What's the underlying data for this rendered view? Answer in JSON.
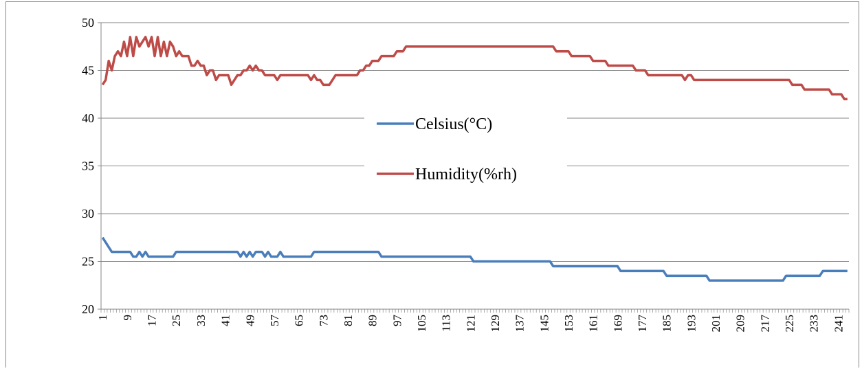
{
  "chart_data": {
    "type": "line",
    "categories": [
      1,
      null,
      null,
      null,
      null,
      null,
      null,
      null,
      9,
      null,
      null,
      null,
      null,
      null,
      null,
      null,
      17,
      null,
      null,
      null,
      null,
      null,
      null,
      null,
      25,
      null,
      null,
      null,
      null,
      null,
      null,
      null,
      33,
      null,
      null,
      null,
      null,
      null,
      null,
      null,
      41,
      null,
      null,
      null,
      null,
      null,
      null,
      null,
      49,
      null,
      null,
      null,
      null,
      null,
      null,
      null,
      57,
      null,
      null,
      null,
      null,
      null,
      null,
      null,
      65,
      null,
      null,
      null,
      null,
      null,
      null,
      null,
      73,
      null,
      null,
      null,
      null,
      null,
      null,
      null,
      81,
      null,
      null,
      null,
      null,
      null,
      null,
      null,
      89,
      null,
      null,
      null,
      null,
      null,
      null,
      null,
      97,
      null,
      null,
      null,
      null,
      null,
      null,
      null,
      105,
      null,
      null,
      null,
      null,
      null,
      null,
      null,
      113,
      null,
      null,
      null,
      null,
      null,
      null,
      null,
      121,
      null,
      null,
      null,
      null,
      null,
      null,
      null,
      129,
      null,
      null,
      null,
      null,
      null,
      null,
      null,
      137,
      null,
      null,
      null,
      null,
      null,
      null,
      null,
      145,
      null,
      null,
      null,
      null,
      null,
      null,
      null,
      153,
      null,
      null,
      null,
      null,
      null,
      null,
      null,
      161,
      null,
      null,
      null,
      null,
      null,
      null,
      null,
      169,
      null,
      null,
      null,
      null,
      null,
      null,
      null,
      177,
      null,
      null,
      null,
      null,
      null,
      null,
      null,
      185,
      null,
      null,
      null,
      null,
      null,
      null,
      null,
      193,
      null,
      null,
      null,
      null,
      null,
      null,
      null,
      201,
      null,
      null,
      null,
      null,
      null,
      null,
      null,
      209,
      null,
      null,
      null,
      null,
      null,
      null,
      null,
      217,
      null,
      null,
      null,
      null,
      null,
      null,
      null,
      225,
      null,
      null,
      null,
      null,
      null,
      null,
      null,
      233,
      null,
      null,
      null,
      null,
      null,
      null,
      null,
      241,
      null,
      null,
      null
    ],
    "series": [
      {
        "name": "Celsius(°C)",
        "color": "#4a7ebb",
        "values": [
          27.5,
          27,
          26.5,
          26,
          26,
          26,
          26,
          26,
          26,
          26,
          25.5,
          25.5,
          26,
          25.5,
          26,
          25.5,
          25.5,
          25.5,
          25.5,
          25.5,
          25.5,
          25.5,
          25.5,
          25.5,
          26,
          26,
          26,
          26,
          26,
          26,
          26,
          26,
          26,
          26,
          26,
          26,
          26,
          26,
          26,
          26,
          26,
          26,
          26,
          26,
          26,
          25.5,
          26,
          25.5,
          26,
          25.5,
          26,
          26,
          26,
          25.5,
          26,
          25.5,
          25.5,
          25.5,
          26,
          25.5,
          25.5,
          25.5,
          25.5,
          25.5,
          25.5,
          25.5,
          25.5,
          25.5,
          25.5,
          26,
          26,
          26,
          26,
          26,
          26,
          26,
          26,
          26,
          26,
          26,
          26,
          26,
          26,
          26,
          26,
          26,
          26,
          26,
          26,
          26,
          26,
          25.5,
          25.5,
          25.5,
          25.5,
          25.5,
          25.5,
          25.5,
          25.5,
          25.5,
          25.5,
          25.5,
          25.5,
          25.5,
          25.5,
          25.5,
          25.5,
          25.5,
          25.5,
          25.5,
          25.5,
          25.5,
          25.5,
          25.5,
          25.5,
          25.5,
          25.5,
          25.5,
          25.5,
          25.5,
          25.5,
          25,
          25,
          25,
          25,
          25,
          25,
          25,
          25,
          25,
          25,
          25,
          25,
          25,
          25,
          25,
          25,
          25,
          25,
          25,
          25,
          25,
          25,
          25,
          25,
          25,
          25,
          24.5,
          24.5,
          24.5,
          24.5,
          24.5,
          24.5,
          24.5,
          24.5,
          24.5,
          24.5,
          24.5,
          24.5,
          24.5,
          24.5,
          24.5,
          24.5,
          24.5,
          24.5,
          24.5,
          24.5,
          24.5,
          24.5,
          24,
          24,
          24,
          24,
          24,
          24,
          24,
          24,
          24,
          24,
          24,
          24,
          24,
          24,
          24,
          23.5,
          23.5,
          23.5,
          23.5,
          23.5,
          23.5,
          23.5,
          23.5,
          23.5,
          23.5,
          23.5,
          23.5,
          23.5,
          23.5,
          23,
          23,
          23,
          23,
          23,
          23,
          23,
          23,
          23,
          23,
          23,
          23,
          23,
          23,
          23,
          23,
          23,
          23,
          23,
          23,
          23,
          23,
          23,
          23,
          23,
          23.5,
          23.5,
          23.5,
          23.5,
          23.5,
          23.5,
          23.5,
          23.5,
          23.5,
          23.5,
          23.5,
          23.5,
          24,
          24,
          24,
          24,
          24,
          24,
          24,
          24,
          24
        ]
      },
      {
        "name": "Humidity(%rh)",
        "color": "#be4b48",
        "values": [
          43.5,
          44,
          46,
          45,
          46.5,
          47,
          46.5,
          48,
          46.5,
          48.5,
          46.5,
          48.5,
          47.5,
          48,
          48.5,
          47.5,
          48.5,
          46.5,
          48.5,
          46.5,
          48,
          46.5,
          48,
          47.5,
          46.5,
          47,
          46.5,
          46.5,
          46.5,
          45.5,
          45.5,
          46,
          45.5,
          45.5,
          44.5,
          45,
          45,
          44,
          44.5,
          44.5,
          44.5,
          44.5,
          43.5,
          44,
          44.5,
          44.5,
          45,
          45,
          45.5,
          45,
          45.5,
          45,
          45,
          44.5,
          44.5,
          44.5,
          44.5,
          44,
          44.5,
          44.5,
          44.5,
          44.5,
          44.5,
          44.5,
          44.5,
          44.5,
          44.5,
          44.5,
          44,
          44.5,
          44,
          44,
          43.5,
          43.5,
          43.5,
          44,
          44.5,
          44.5,
          44.5,
          44.5,
          44.5,
          44.5,
          44.5,
          44.5,
          45,
          45,
          45.5,
          45.5,
          46,
          46,
          46,
          46.5,
          46.5,
          46.5,
          46.5,
          46.5,
          47,
          47,
          47,
          47.5,
          47.5,
          47.5,
          47.5,
          47.5,
          47.5,
          47.5,
          47.5,
          47.5,
          47.5,
          47.5,
          47.5,
          47.5,
          47.5,
          47.5,
          47.5,
          47.5,
          47.5,
          47.5,
          47.5,
          47.5,
          47.5,
          47.5,
          47.5,
          47.5,
          47.5,
          47.5,
          47.5,
          47.5,
          47.5,
          47.5,
          47.5,
          47.5,
          47.5,
          47.5,
          47.5,
          47.5,
          47.5,
          47.5,
          47.5,
          47.5,
          47.5,
          47.5,
          47.5,
          47.5,
          47.5,
          47.5,
          47.5,
          47.5,
          47,
          47,
          47,
          47,
          47,
          46.5,
          46.5,
          46.5,
          46.5,
          46.5,
          46.5,
          46.5,
          46,
          46,
          46,
          46,
          46,
          45.5,
          45.5,
          45.5,
          45.5,
          45.5,
          45.5,
          45.5,
          45.5,
          45.5,
          45,
          45,
          45,
          45,
          44.5,
          44.5,
          44.5,
          44.5,
          44.5,
          44.5,
          44.5,
          44.5,
          44.5,
          44.5,
          44.5,
          44.5,
          44,
          44.5,
          44.5,
          44,
          44,
          44,
          44,
          44,
          44,
          44,
          44,
          44,
          44,
          44,
          44,
          44,
          44,
          44,
          44,
          44,
          44,
          44,
          44,
          44,
          44,
          44,
          44,
          44,
          44,
          44,
          44,
          44,
          44,
          44,
          44,
          43.5,
          43.5,
          43.5,
          43.5,
          43,
          43,
          43,
          43,
          43,
          43,
          43,
          43,
          43,
          42.5,
          42.5,
          42.5,
          42.5,
          42,
          42
        ]
      }
    ],
    "ylim": [
      20,
      50
    ],
    "yticks": [
      20,
      25,
      30,
      35,
      40,
      45,
      50
    ],
    "grid": true
  }
}
